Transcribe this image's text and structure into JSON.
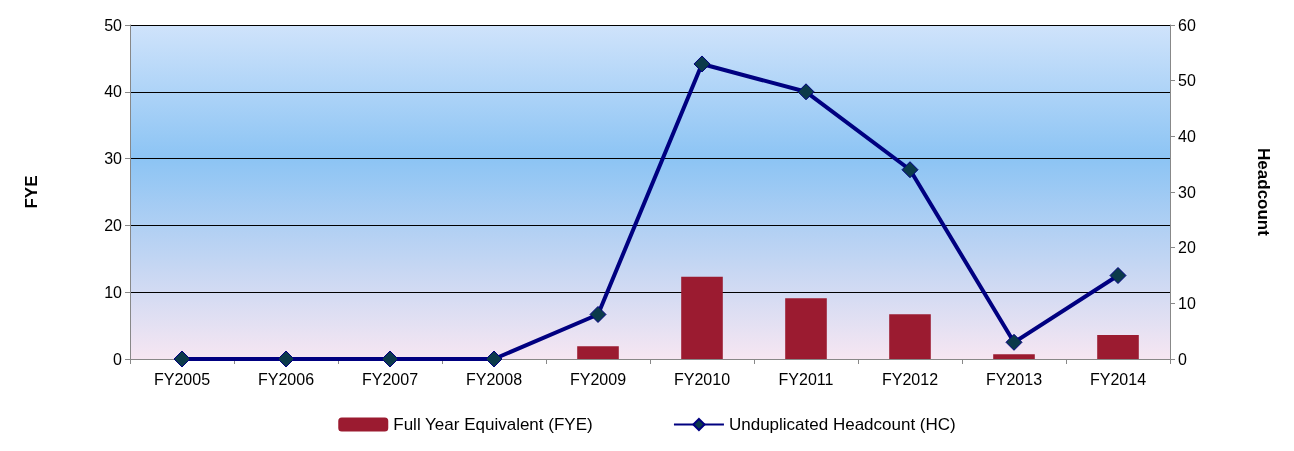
{
  "chart_data": {
    "type": "bar",
    "ylabel": "FYE",
    "y2label": "Headcount",
    "categories": [
      "FY2005",
      "FY2006",
      "FY2007",
      "FY2008",
      "FY2009",
      "FY2010",
      "FY2011",
      "FY2012",
      "FY2013",
      "FY2014"
    ],
    "series": [
      {
        "name": "Full Year Equivalent (FYE)",
        "color": "#9b1b30",
        "values": [
          0,
          0,
          0,
          0,
          1.9,
          12.3,
          9.1,
          6.7,
          0.7,
          3.6
        ]
      },
      {
        "name": "Unduplicated Headcount (HC)",
        "type": "line",
        "axis": "y2",
        "color": "#000080",
        "marker": "diamond",
        "values": [
          0,
          0,
          0,
          0,
          8,
          53,
          48,
          34,
          3,
          15
        ]
      }
    ],
    "ylim": [
      0,
      50
    ],
    "yticks": [
      0,
      10,
      20,
      30,
      40,
      50
    ],
    "y2lim": [
      0,
      60
    ],
    "y2ticks": [
      0,
      10,
      20,
      30,
      40,
      50,
      60
    ],
    "grid": "y",
    "legend": "bottom"
  }
}
